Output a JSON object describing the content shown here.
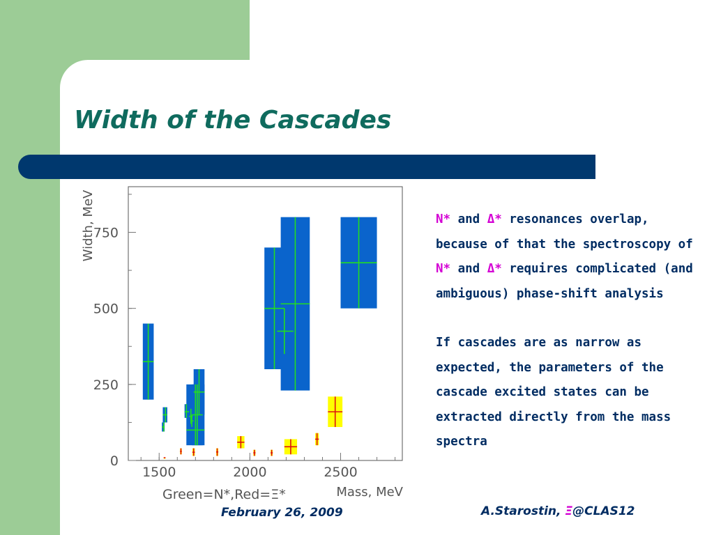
{
  "slide": {
    "title": "Width of the Cascades",
    "footer_date": "February 26, 2009",
    "footer_author_prefix": "A.Starostin, ",
    "footer_author_symbol": "Ξ",
    "footer_author_suffix": "@CLAS12",
    "text": {
      "p1": {
        "nstar_1": "N*",
        "and_1": " and ",
        "delta_1": "Δ*",
        "mid_1": " resonances overlap, because of that the spectroscopy of ",
        "nstar_2": "N*",
        "and_2": " and ",
        "delta_2": "Δ*",
        "end_1": " requires complicated (and ambiguous) phase-shift analysis"
      },
      "p2": "If cascades are as narrow as expected, the parameters of the cascade excited states can be extracted directly from the mass spectra"
    }
  },
  "colors": {
    "sidebar_green": "#9ccc96",
    "title_teal": "#0f6b5e",
    "bar_navy": "#00386e",
    "text_navy": "#002c62",
    "highlight_magenta": "#d400d4",
    "nstar_box": "#0a64cc",
    "nstar_line": "#22dd22",
    "xi_box": "#ffff00",
    "xi_line": "#dd1111"
  },
  "chart_data": {
    "type": "scatter",
    "xlabel": "Mass, MeV",
    "ylabel": "Width, MeV",
    "legend_text": "Green=N*,Red=Ξ*",
    "xlim": [
      1330,
      2840
    ],
    "ylim": [
      0,
      900
    ],
    "x_ticks": [
      1500,
      2000,
      2500
    ],
    "y_ticks": [
      0,
      250,
      500,
      750
    ],
    "series": [
      {
        "name": "Green=N*",
        "points": [
          {
            "mass": 1440,
            "width": 325,
            "mass_min": 1410,
            "mass_max": 1470,
            "width_min": 200,
            "width_max": 450
          },
          {
            "mass": 1535,
            "width": 150,
            "mass_min": 1520,
            "mass_max": 1545,
            "width_min": 125,
            "width_max": 175
          },
          {
            "mass": 1525,
            "width": 110,
            "mass_min": 1515,
            "mass_max": 1530,
            "width_min": 95,
            "width_max": 125
          },
          {
            "mass": 1650,
            "width": 160,
            "mass_min": 1640,
            "mass_max": 1665,
            "width_min": 140,
            "width_max": 185
          },
          {
            "mass": 1675,
            "width": 145,
            "mass_min": 1665,
            "mass_max": 1685,
            "width_min": 120,
            "width_max": 170
          },
          {
            "mass": 1680,
            "width": 130,
            "mass_min": 1675,
            "mass_max": 1690,
            "width_min": 110,
            "width_max": 150
          },
          {
            "mass": 1700,
            "width": 100,
            "mass_min": 1650,
            "mass_max": 1750,
            "width_min": 50,
            "width_max": 250
          },
          {
            "mass": 1710,
            "width": 150,
            "mass_min": 1680,
            "mass_max": 1740,
            "width_min": 50,
            "width_max": 250
          },
          {
            "mass": 1720,
            "width": 225,
            "mass_min": 1690,
            "mass_max": 1750,
            "width_min": 150,
            "width_max": 300
          },
          {
            "mass": 2135,
            "width": 500,
            "mass_min": 2080,
            "mass_max": 2190,
            "width_min": 300,
            "width_max": 700
          },
          {
            "mass": 2190,
            "width": 425,
            "mass_min": 2150,
            "mass_max": 2240,
            "width_min": 350,
            "width_max": 500
          },
          {
            "mass": 2250,
            "width": 515,
            "mass_min": 2170,
            "mass_max": 2330,
            "width_min": 230,
            "width_max": 800
          },
          {
            "mass": 2600,
            "width": 650,
            "mass_min": 2500,
            "mass_max": 2700,
            "width_min": 500,
            "width_max": 800
          }
        ]
      },
      {
        "name": "Red=Ξ*",
        "points": [
          {
            "mass": 1530,
            "width": 9,
            "mass_min": 1525,
            "mass_max": 1535,
            "width_min": 8,
            "width_max": 10
          },
          {
            "mass": 1620,
            "width": 30,
            "mass_min": 1615,
            "mass_max": 1625,
            "width_min": 20,
            "width_max": 40
          },
          {
            "mass": 1690,
            "width": 27,
            "mass_min": 1683,
            "mass_max": 1697,
            "width_min": 15,
            "width_max": 40
          },
          {
            "mass": 1820,
            "width": 28,
            "mass_min": 1814,
            "mass_max": 1826,
            "width_min": 15,
            "width_max": 40
          },
          {
            "mass": 1950,
            "width": 60,
            "mass_min": 1930,
            "mass_max": 1970,
            "width_min": 40,
            "width_max": 80
          },
          {
            "mass": 2025,
            "width": 25,
            "mass_min": 2019,
            "mass_max": 2031,
            "width_min": 15,
            "width_max": 35
          },
          {
            "mass": 2120,
            "width": 25,
            "mass_min": 2114,
            "mass_max": 2126,
            "width_min": 15,
            "width_max": 35
          },
          {
            "mass": 2225,
            "width": 45,
            "mass_min": 2190,
            "mass_max": 2260,
            "width_min": 20,
            "width_max": 70
          },
          {
            "mass": 2370,
            "width": 70,
            "mass_min": 2360,
            "mass_max": 2380,
            "width_min": 50,
            "width_max": 90
          },
          {
            "mass": 2470,
            "width": 160,
            "mass_min": 2430,
            "mass_max": 2510,
            "width_min": 110,
            "width_max": 210
          }
        ]
      }
    ]
  }
}
